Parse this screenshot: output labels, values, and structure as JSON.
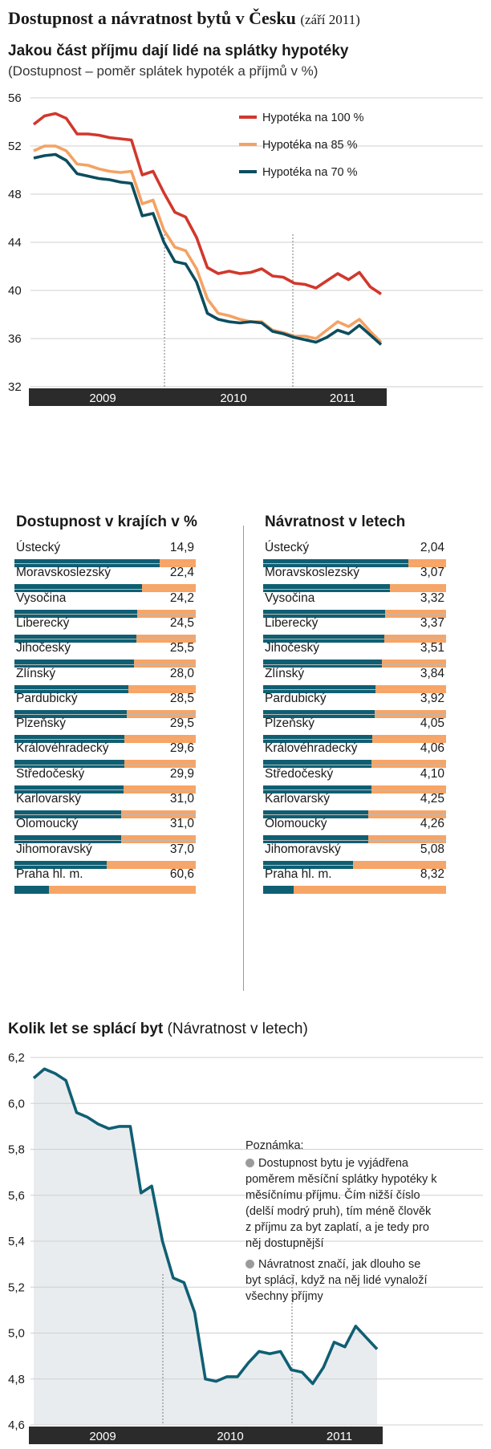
{
  "header": {
    "title": "Dostupnost a návratnost bytů v Česku",
    "date": "(září 2011)"
  },
  "chart_data": [
    {
      "type": "line",
      "title": "Jakou část příjmu dají lidé na splátky hypotéky",
      "subtitle": "(Dostupnost – poměr splátek hypoték a příjmů v %)",
      "xlabel": "",
      "ylabel": "",
      "ylim": [
        32,
        56
      ],
      "yticks": [
        32,
        36,
        40,
        44,
        48,
        52,
        56
      ],
      "x_labels": [
        "2009",
        "2010",
        "2011"
      ],
      "grid": true,
      "legend_position": "top-right",
      "series": [
        {
          "name": "Hypotéka na 100 %",
          "color": "#d1382c",
          "values": [
            53.8,
            54.5,
            54.7,
            54.3,
            53.0,
            53.0,
            52.9,
            52.7,
            52.6,
            52.5,
            49.6,
            49.9,
            48.1,
            46.5,
            46.1,
            44.4,
            41.9,
            41.4,
            41.6,
            41.4,
            41.5,
            41.8,
            41.2,
            41.1,
            40.6,
            40.5,
            40.2,
            40.8,
            41.4,
            40.9,
            41.5,
            40.3,
            39.7
          ]
        },
        {
          "name": "Hypotéka na 85 %",
          "color": "#f4a263",
          "values": [
            51.6,
            52.0,
            52.0,
            51.6,
            50.5,
            50.4,
            50.1,
            49.9,
            49.8,
            49.9,
            47.2,
            47.5,
            45.0,
            43.6,
            43.3,
            41.8,
            39.3,
            38.1,
            37.9,
            37.6,
            37.4,
            37.4,
            36.7,
            36.5,
            36.2,
            36.2,
            36.0,
            36.7,
            37.4,
            37.0,
            37.6,
            36.6,
            35.7
          ]
        },
        {
          "name": "Hypotéka na 70 %",
          "color": "#0c4d5e",
          "values": [
            51.0,
            51.2,
            51.3,
            50.8,
            49.7,
            49.5,
            49.3,
            49.2,
            49.0,
            48.9,
            46.2,
            46.4,
            44.0,
            42.4,
            42.2,
            40.7,
            38.1,
            37.6,
            37.4,
            37.3,
            37.4,
            37.3,
            36.6,
            36.4,
            36.1,
            35.9,
            35.7,
            36.1,
            36.7,
            36.4,
            37.1,
            36.3,
            35.5
          ]
        }
      ]
    },
    {
      "type": "area",
      "title": "Kolik let se splácí byt",
      "subtitle": "(Návratnost v letech)",
      "xlabel": "",
      "ylabel": "",
      "ylim": [
        4.6,
        6.2
      ],
      "yticks": [
        4.6,
        4.8,
        5.0,
        5.2,
        5.4,
        5.6,
        5.8,
        6.0,
        6.2
      ],
      "x_labels": [
        "2009",
        "2010",
        "2011"
      ],
      "grid": true,
      "series": [
        {
          "color": "#0f5f73",
          "values": [
            6.11,
            6.15,
            6.13,
            6.1,
            5.96,
            5.94,
            5.91,
            5.89,
            5.9,
            5.9,
            5.61,
            5.64,
            5.4,
            5.24,
            5.22,
            5.09,
            4.8,
            4.79,
            4.81,
            4.81,
            4.87,
            4.92,
            4.91,
            4.92,
            4.84,
            4.83,
            4.78,
            4.85,
            4.96,
            4.94,
            5.03,
            4.98,
            4.93
          ]
        }
      ]
    },
    {
      "type": "bar",
      "title": "Dostupnost v krajích v %",
      "xlim": [
        0,
        75
      ],
      "categories": [
        "Ústecký",
        "Moravskoslezský",
        "Vysočina",
        "Liberecký",
        "Jihočeský",
        "Zlínský",
        "Pardubický",
        "Plzeňský",
        "Královéhradecký",
        "Středočeský",
        "Karlovarský",
        "Olomoucký",
        "Jihomoravský",
        "Praha hl. m."
      ],
      "values": [
        14.9,
        22.4,
        24.2,
        24.5,
        25.5,
        28.0,
        28.5,
        29.5,
        29.6,
        29.9,
        31.0,
        31.0,
        37.0,
        60.6
      ],
      "value_labels": [
        "14,9",
        "22,4",
        "24,2",
        "24,5",
        "25,5",
        "28,0",
        "28,5",
        "29,5",
        "29,6",
        "29,9",
        "31,0",
        "31,0",
        "37,0",
        "60,6"
      ]
    },
    {
      "type": "bar",
      "title": "Návratnost v letech",
      "xlim": [
        0,
        10
      ],
      "categories": [
        "Ústecký",
        "Moravskoslezský",
        "Vysočina",
        "Liberecký",
        "Jihočeský",
        "Zlínský",
        "Pardubický",
        "Plzeňský",
        "Královéhradecký",
        "Středočeský",
        "Karlovarský",
        "Olomoucký",
        "Jihomoravský",
        "Praha hl. m."
      ],
      "values": [
        2.04,
        3.07,
        3.32,
        3.37,
        3.51,
        3.84,
        3.92,
        4.05,
        4.06,
        4.1,
        4.25,
        4.26,
        5.08,
        8.32
      ],
      "value_labels": [
        "2,04",
        "3,07",
        "3,32",
        "3,37",
        "3,51",
        "3,84",
        "3,92",
        "4,05",
        "4,06",
        "4,10",
        "4,25",
        "4,26",
        "5,08",
        "8,32"
      ]
    }
  ],
  "note": {
    "title": "Poznámka:",
    "p1": "Dostupnost bytu je vyjádřena poměrem měsíční splátky hypotéky k měsíčnímu příjmu. Čím nižší číslo (delší modrý pruh), tím méně člověk z příjmu za byt zaplatí, a je tedy pro něj dostupnější",
    "p2": "Návratnost značí, jak dlouho se byt splácí, když na něj lidé vynaloží všechny příjmy"
  },
  "colors": {
    "dark_teal": "#0f5f73",
    "orange": "#f7a567",
    "red": "#d1382c",
    "axis_band": "#2b2b2b",
    "area_fill": "#e9ecef"
  }
}
